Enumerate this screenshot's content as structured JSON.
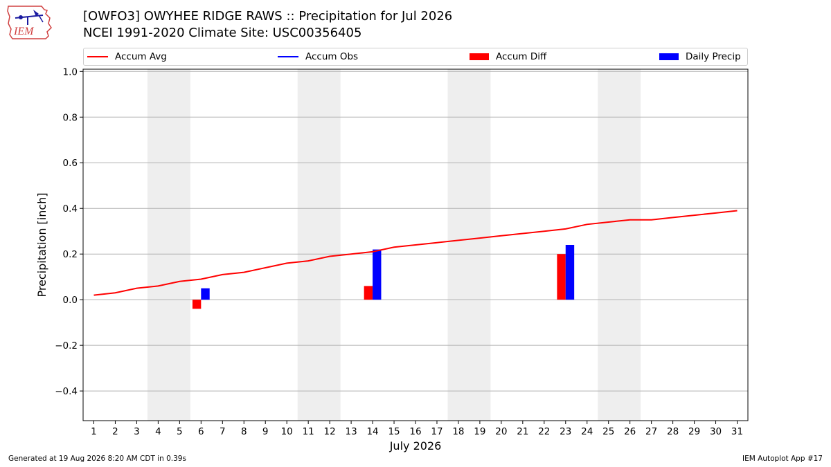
{
  "header": {
    "logo_text": "IEM",
    "title_line1": "[OWFO3] OWYHEE RIDGE RAWS :: Precipitation for Jul 2026",
    "title_line2": "NCEI 1991-2020 Climate Site: USC00356405"
  },
  "legend": {
    "accum_avg": "Accum Avg",
    "accum_obs": "Accum Obs",
    "accum_diff": "Accum Diff",
    "daily_precip": "Daily Precip"
  },
  "colors": {
    "accum_avg": "#ff0000",
    "accum_obs": "#0000ff",
    "accum_diff": "#ff0000",
    "daily_precip": "#0000ff",
    "weekend_shade": "#eeeeee",
    "grid": "#b0b0b0"
  },
  "footer": {
    "left": "Generated at 19 Aug 2026 8:20 AM CDT in 0.39s",
    "right": "IEM Autoplot App #17"
  },
  "chart_data": {
    "type": "bar",
    "xlabel": "July 2026",
    "ylabel": "Precipitation [inch]",
    "ylim": [
      -0.53,
      1.01
    ],
    "xlim": [
      0.5,
      31.5
    ],
    "yticks": [
      -0.4,
      -0.2,
      0.0,
      0.2,
      0.4,
      0.6,
      0.8,
      1.0
    ],
    "ytick_labels": [
      "−0.4",
      "−0.2",
      "0.0",
      "0.2",
      "0.4",
      "0.6",
      "0.8",
      "1.0"
    ],
    "grid": "horizontal",
    "legend_position": "top",
    "days": [
      1,
      2,
      3,
      4,
      5,
      6,
      7,
      8,
      9,
      10,
      11,
      12,
      13,
      14,
      15,
      16,
      17,
      18,
      19,
      20,
      21,
      22,
      23,
      24,
      25,
      26,
      27,
      28,
      29,
      30,
      31
    ],
    "weekend_spans": [
      [
        4,
        5
      ],
      [
        11,
        12
      ],
      [
        18,
        19
      ],
      [
        25,
        26
      ]
    ],
    "series": [
      {
        "name": "Accum Avg",
        "type": "line",
        "values": [
          0.02,
          0.03,
          0.05,
          0.06,
          0.08,
          0.09,
          0.11,
          0.12,
          0.14,
          0.16,
          0.17,
          0.19,
          0.2,
          0.21,
          0.23,
          0.24,
          0.25,
          0.26,
          0.27,
          0.28,
          0.29,
          0.3,
          0.31,
          0.33,
          0.34,
          0.35,
          0.35,
          0.36,
          0.37,
          0.38,
          0.39
        ]
      },
      {
        "name": "Accum Diff",
        "type": "bar",
        "points": [
          {
            "day": 6,
            "value": -0.04
          },
          {
            "day": 14,
            "value": 0.06
          },
          {
            "day": 23,
            "value": 0.2
          }
        ]
      },
      {
        "name": "Daily Precip",
        "type": "bar",
        "points": [
          {
            "day": 6,
            "value": 0.05
          },
          {
            "day": 14,
            "value": 0.22
          },
          {
            "day": 23,
            "value": 0.24
          }
        ]
      }
    ]
  }
}
